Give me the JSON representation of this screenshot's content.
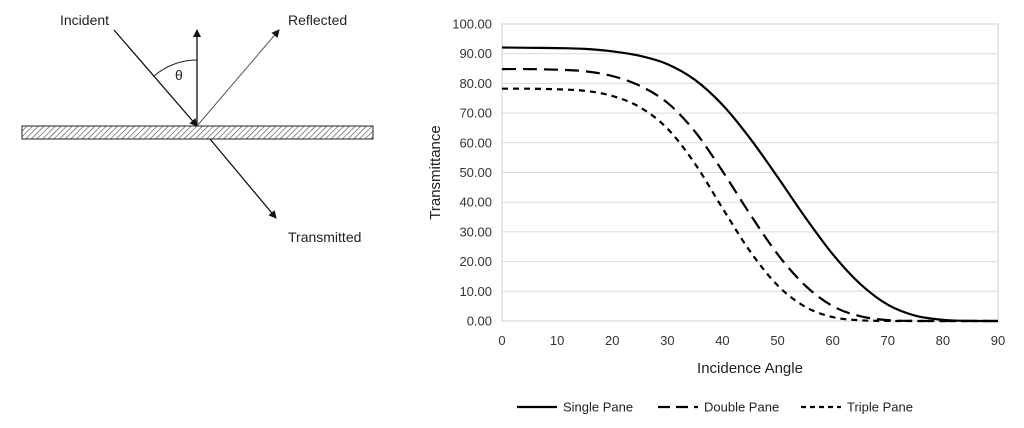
{
  "diagram": {
    "incident_label": "Incident",
    "reflected_label": "Reflected",
    "transmitted_label": "Transmitted",
    "angle_label": "θ"
  },
  "chart_data": {
    "type": "line",
    "title": "",
    "xlabel": "Incidence Angle",
    "ylabel": "Transmittance",
    "xlim": [
      0,
      90
    ],
    "ylim": [
      0,
      100
    ],
    "x_ticks": [
      "0",
      "10",
      "20",
      "30",
      "40",
      "50",
      "60",
      "70",
      "80",
      "90"
    ],
    "y_ticks": [
      "0.00",
      "10.00",
      "20.00",
      "30.00",
      "40.00",
      "50.00",
      "60.00",
      "70.00",
      "80.00",
      "90.00",
      "100.00"
    ],
    "grid": "horizontal",
    "legend_position": "bottom",
    "x": [
      0,
      5,
      10,
      15,
      20,
      25,
      30,
      35,
      40,
      45,
      50,
      55,
      60,
      65,
      70,
      75,
      80,
      85,
      90
    ],
    "series": [
      {
        "name": "Single Pane",
        "style": "solid",
        "values": [
          92.1,
          92.0,
          91.9,
          91.6,
          90.8,
          89.3,
          86.5,
          81.2,
          72.8,
          61.5,
          48.5,
          35.0,
          22.5,
          12.5,
          5.5,
          1.8,
          0.4,
          0.05,
          0.0
        ]
      },
      {
        "name": "Double Pane",
        "style": "long-dash",
        "values": [
          84.8,
          84.8,
          84.6,
          84.1,
          82.5,
          79.2,
          73.5,
          63.8,
          50.5,
          36.0,
          22.5,
          12.0,
          5.0,
          1.6,
          0.3,
          0.03,
          0.0,
          0.0,
          0.0
        ]
      },
      {
        "name": "Triple Pane",
        "style": "short-dash",
        "values": [
          78.2,
          78.2,
          78.0,
          77.5,
          75.8,
          72.0,
          64.8,
          53.0,
          38.0,
          23.5,
          12.0,
          4.8,
          1.3,
          0.25,
          0.02,
          0.0,
          0.0,
          0.0,
          0.0
        ]
      }
    ],
    "colors": {
      "line": "#000000",
      "grid": "#d9d9d9"
    }
  }
}
